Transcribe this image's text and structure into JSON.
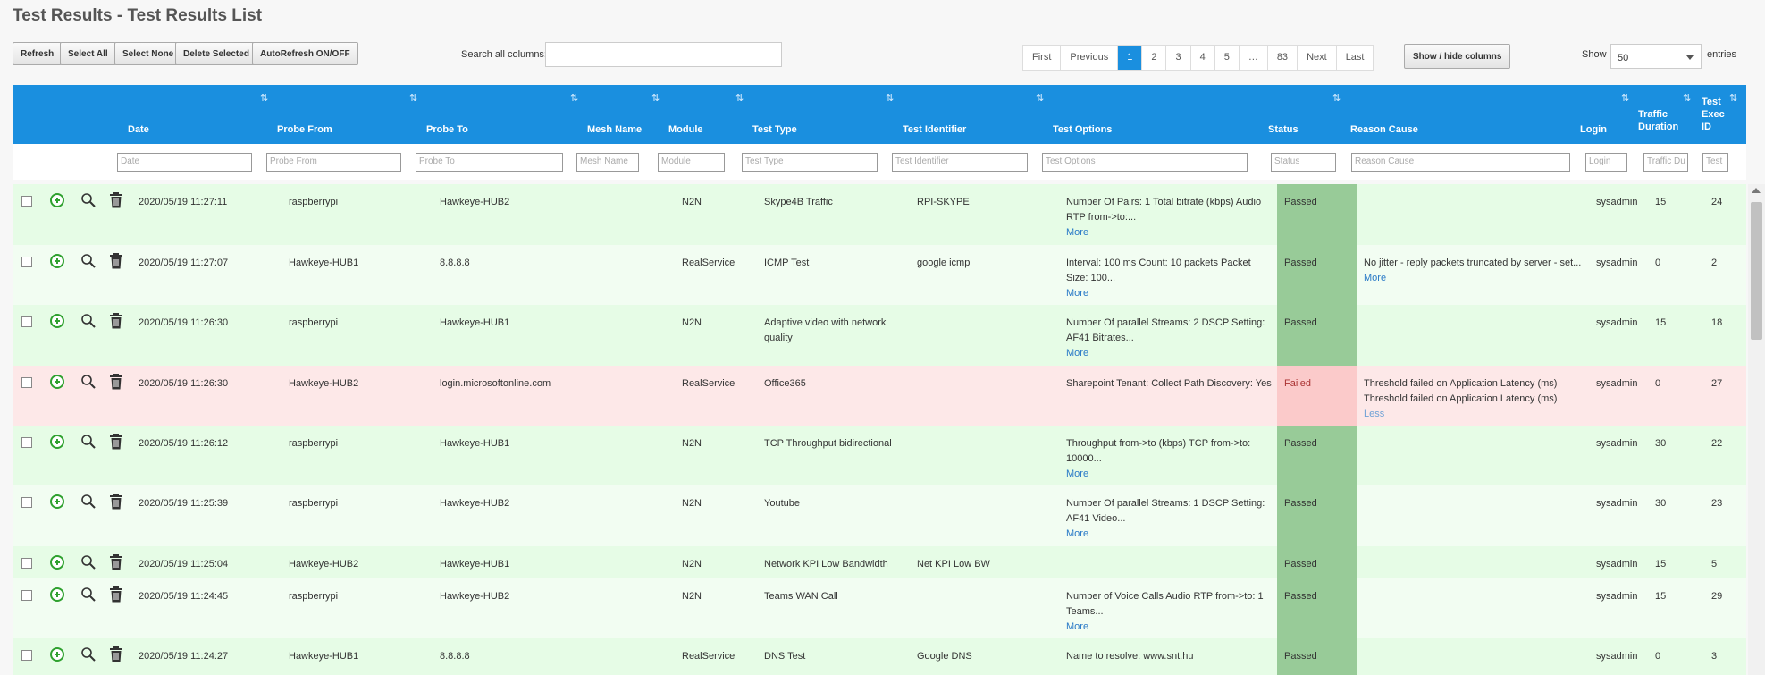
{
  "page": {
    "title": "Test Results - Test Results List"
  },
  "toolbar": {
    "refresh": "Refresh",
    "select_all": "Select All",
    "select_none": "Select None",
    "delete_selected": "Delete Selected",
    "autorefresh": "AutoRefresh ON/OFF",
    "search_label": "Search all columns:",
    "search_value": ""
  },
  "pagination": {
    "first": "First",
    "previous": "Previous",
    "pages": [
      "1",
      "2",
      "3",
      "4",
      "5",
      "…",
      "83"
    ],
    "current": "1",
    "next": "Next",
    "last": "Last"
  },
  "columns_button": "Show / hide columns",
  "length": {
    "show_label": "Show",
    "value": "50",
    "entries_label": "entries"
  },
  "colors": {
    "header": "#1a8fdf",
    "passed_row": "#e6fce6",
    "passed_status": "#98cb98",
    "failed_row": "#fde8e8",
    "failed_status": "#fbcaca",
    "link": "#2a7ac7"
  },
  "headers": {
    "date": "Date",
    "probe_from": "Probe From",
    "probe_to": "Probe To",
    "mesh_name": "Mesh Name",
    "module": "Module",
    "test_type": "Test Type",
    "test_identifier": "Test Identifier",
    "test_options": "Test Options",
    "status": "Status",
    "reason_cause": "Reason Cause",
    "login": "Login",
    "traffic_duration_1": "Traffic",
    "traffic_duration_2": "Duration",
    "exec_id_1": "Test",
    "exec_id_2": "Exec",
    "exec_id_3": "ID"
  },
  "filters": {
    "date": "Date",
    "probe_from": "Probe From",
    "probe_to": "Probe To",
    "mesh_name": "Mesh Name",
    "module": "Module",
    "test_type": "Test Type",
    "test_identifier": "Test Identifier",
    "test_options": "Test Options",
    "status": "Status",
    "reason_cause": "Reason Cause",
    "login": "Login",
    "traffic_duration": "Traffic Du",
    "exec_id": "Test"
  },
  "rows": [
    {
      "date": "2020/05/19 11:27:11",
      "probe_from": "raspberrypi",
      "probe_to": "Hawkeye-HUB2",
      "mesh_name": "",
      "module": "N2N",
      "test_type": "Skype4B Traffic",
      "test_identifier": "RPI-SKYPE",
      "options": "Number Of Pairs: 1 Total bitrate (kbps) Audio RTP from->to:...",
      "options_link": "More",
      "status": "Passed",
      "reason": "",
      "reason_link": "",
      "login": "sysadmin",
      "duration": "15",
      "exec_id": "24"
    },
    {
      "date": "2020/05/19 11:27:07",
      "probe_from": "Hawkeye-HUB1",
      "probe_to": "8.8.8.8",
      "mesh_name": "",
      "module": "RealService",
      "test_type": "ICMP Test",
      "test_identifier": "google icmp",
      "options": "Interval: 100 ms Count: 10 packets Packet Size: 100...",
      "options_link": "More",
      "status": "Passed",
      "reason": "No jitter - reply packets truncated by server - set...",
      "reason_link": "More",
      "login": "sysadmin",
      "duration": "0",
      "exec_id": "2"
    },
    {
      "date": "2020/05/19 11:26:30",
      "probe_from": "raspberrypi",
      "probe_to": "Hawkeye-HUB1",
      "mesh_name": "",
      "module": "N2N",
      "test_type": "Adaptive video with network quality",
      "test_identifier": "",
      "options": "Number Of parallel Streams: 2 DSCP Setting: AF41 Bitrates...",
      "options_link": "More",
      "status": "Passed",
      "reason": "",
      "reason_link": "",
      "login": "sysadmin",
      "duration": "15",
      "exec_id": "18"
    },
    {
      "date": "2020/05/19 11:26:30",
      "probe_from": "Hawkeye-HUB2",
      "probe_to": "login.microsoftonline.com",
      "mesh_name": "",
      "module": "RealService",
      "test_type": "Office365",
      "test_identifier": "",
      "options": "Sharepoint Tenant: Collect Path Discovery: Yes",
      "options_link": "",
      "status": "Failed",
      "reason": "Threshold failed on Application Latency (ms) Threshold failed on Application Latency (ms)",
      "reason_link": "Less",
      "login": "sysadmin",
      "duration": "0",
      "exec_id": "27"
    },
    {
      "date": "2020/05/19 11:26:12",
      "probe_from": "raspberrypi",
      "probe_to": "Hawkeye-HUB1",
      "mesh_name": "",
      "module": "N2N",
      "test_type": "TCP Throughput bidirectional",
      "test_identifier": "",
      "options": "Throughput from->to (kbps) TCP from->to: 10000...",
      "options_link": "More",
      "status": "Passed",
      "reason": "",
      "reason_link": "",
      "login": "sysadmin",
      "duration": "30",
      "exec_id": "22"
    },
    {
      "date": "2020/05/19 11:25:39",
      "probe_from": "raspberrypi",
      "probe_to": "Hawkeye-HUB2",
      "mesh_name": "",
      "module": "N2N",
      "test_type": "Youtube",
      "test_identifier": "",
      "options": "Number Of parallel Streams: 1 DSCP Setting: AF41 Video...",
      "options_link": "More",
      "status": "Passed",
      "reason": "",
      "reason_link": "",
      "login": "sysadmin",
      "duration": "30",
      "exec_id": "23"
    },
    {
      "date": "2020/05/19 11:25:04",
      "probe_from": "Hawkeye-HUB2",
      "probe_to": "Hawkeye-HUB1",
      "mesh_name": "",
      "module": "N2N",
      "test_type": "Network KPI Low Bandwidth",
      "test_identifier": "Net KPI Low BW",
      "options": "",
      "options_link": "",
      "status": "Passed",
      "reason": "",
      "reason_link": "",
      "login": "sysadmin",
      "duration": "15",
      "exec_id": "5"
    },
    {
      "date": "2020/05/19 11:24:45",
      "probe_from": "raspberrypi",
      "probe_to": "Hawkeye-HUB2",
      "mesh_name": "",
      "module": "N2N",
      "test_type": "Teams WAN Call",
      "test_identifier": "",
      "options": "Number of Voice Calls Audio RTP from->to: 1 Teams...",
      "options_link": "More",
      "status": "Passed",
      "reason": "",
      "reason_link": "",
      "login": "sysadmin",
      "duration": "15",
      "exec_id": "29"
    },
    {
      "date": "2020/05/19 11:24:27",
      "probe_from": "Hawkeye-HUB1",
      "probe_to": "8.8.8.8",
      "mesh_name": "",
      "module": "RealService",
      "test_type": "DNS Test",
      "test_identifier": "Google DNS",
      "options": "Name to resolve: www.snt.hu",
      "options_link": "",
      "status": "Passed",
      "reason": "",
      "reason_link": "",
      "login": "sysadmin",
      "duration": "0",
      "exec_id": "3"
    }
  ]
}
